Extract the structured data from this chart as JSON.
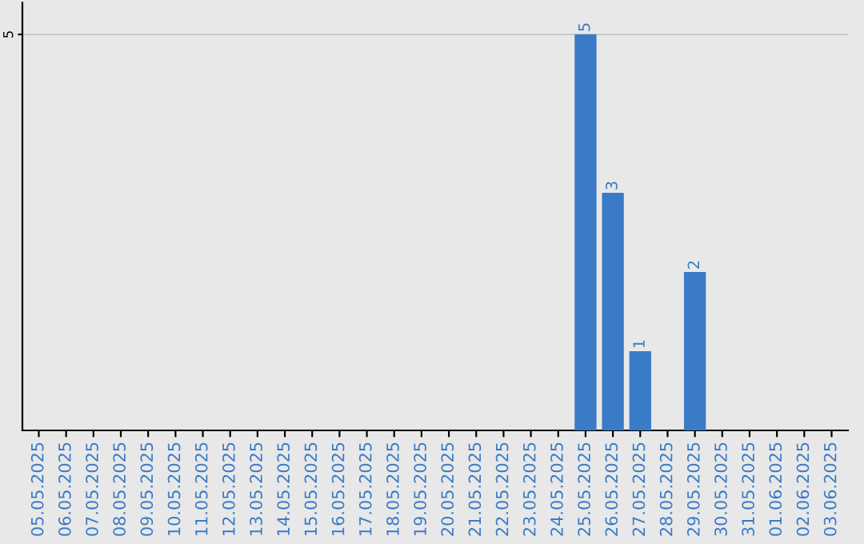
{
  "chart_data": {
    "type": "bar",
    "categories": [
      "05.05.2025",
      "06.05.2025",
      "07.05.2025",
      "08.05.2025",
      "09.05.2025",
      "10.05.2025",
      "11.05.2025",
      "12.05.2025",
      "13.05.2025",
      "14.05.2025",
      "15.05.2025",
      "16.05.2025",
      "17.05.2025",
      "18.05.2025",
      "19.05.2025",
      "20.05.2025",
      "21.05.2025",
      "22.05.2025",
      "23.05.2025",
      "24.05.2025",
      "25.05.2025",
      "26.05.2025",
      "27.05.2025",
      "28.05.2025",
      "29.05.2025",
      "30.05.2025",
      "31.05.2025",
      "01.06.2025",
      "02.06.2025",
      "03.06.2025"
    ],
    "values": [
      null,
      null,
      null,
      null,
      null,
      null,
      null,
      null,
      null,
      null,
      null,
      null,
      null,
      null,
      null,
      null,
      null,
      null,
      null,
      null,
      5,
      3,
      1,
      null,
      2,
      null,
      null,
      null,
      null,
      null
    ],
    "data_labels": true,
    "color": "#3a7bc8",
    "ylim": [
      0,
      5.4
    ],
    "yticks": [
      5
    ],
    "grid": "y"
  }
}
